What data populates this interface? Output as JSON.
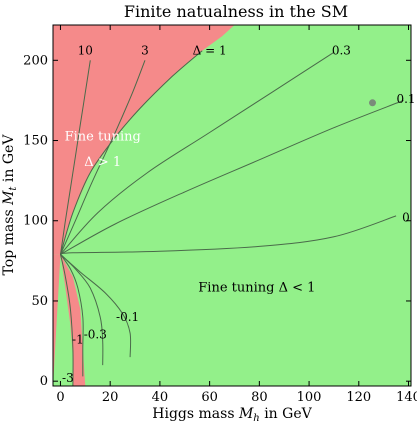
{
  "chart_data": {
    "type": "contour",
    "title": "Finite natualness in the SM",
    "xlabel": "Higgs mass M_h in GeV",
    "ylabel": "Top mass M_t in GeV",
    "xlim": [
      -3,
      141
    ],
    "ylim": [
      -3,
      222
    ],
    "x_ticks": [
      0,
      20,
      40,
      60,
      80,
      100,
      120,
      140
    ],
    "y_ticks": [
      0,
      50,
      100,
      150,
      200
    ],
    "grid": false,
    "colors": {
      "fine_tuned_region": "#f58a8a",
      "natural_region": "#93f08a",
      "contour_line": "#4a6a4a",
      "point": "#7a8a7a"
    },
    "regions": [
      {
        "name": "fine-tuned",
        "label_line1": "Fine tuning",
        "label_line2": "Δ > 1",
        "color": "#f58a8a"
      },
      {
        "name": "natural",
        "label": "Fine tuning Δ < 1",
        "color": "#93f08a"
      }
    ],
    "convergence_point": {
      "x": 0,
      "y": 79
    },
    "data_point": {
      "x": 125.5,
      "y": 173.5
    },
    "boundary_delta_1": [
      [
        0,
        79
      ],
      [
        5,
        105
      ],
      [
        12,
        130
      ],
      [
        22,
        152
      ],
      [
        32,
        170
      ],
      [
        45,
        190
      ],
      [
        57,
        206
      ],
      [
        65,
        215
      ],
      [
        70,
        222
      ]
    ],
    "lower_red_region": [
      [
        0,
        79
      ],
      [
        2,
        58
      ],
      [
        4,
        35
      ],
      [
        5,
        15
      ],
      [
        5,
        -3
      ],
      [
        10,
        -3
      ],
      [
        9,
        20
      ],
      [
        8,
        45
      ],
      [
        5,
        65
      ],
      [
        0,
        79
      ]
    ],
    "contours": [
      {
        "label": "10",
        "points": [
          [
            0,
            79
          ],
          [
            2,
            100
          ],
          [
            5,
            130
          ],
          [
            8,
            160
          ],
          [
            10,
            180
          ],
          [
            12,
            200
          ]
        ],
        "label_at": [
          10,
          206
        ]
      },
      {
        "label": "3",
        "points": [
          [
            0,
            79
          ],
          [
            6,
            100
          ],
          [
            13,
            125
          ],
          [
            22,
            155
          ],
          [
            29,
            180
          ],
          [
            34,
            200
          ]
        ],
        "label_at": [
          34,
          206
        ]
      },
      {
        "label": "Δ = 1",
        "points": [
          [
            0,
            79
          ],
          [
            5,
            105
          ],
          [
            12,
            130
          ],
          [
            22,
            152
          ],
          [
            32,
            170
          ],
          [
            45,
            190
          ],
          [
            57,
            206
          ]
        ],
        "label_at": [
          60,
          206
        ]
      },
      {
        "label": "0.3",
        "points": [
          [
            0,
            79
          ],
          [
            15,
            105
          ],
          [
            35,
            130
          ],
          [
            60,
            155
          ],
          [
            85,
            180
          ],
          [
            110,
            205
          ]
        ],
        "label_at": [
          113,
          206
        ]
      },
      {
        "label": "0.1",
        "points": [
          [
            0,
            79
          ],
          [
            22,
            98
          ],
          [
            50,
            118
          ],
          [
            80,
            138
          ],
          [
            110,
            158
          ],
          [
            138,
            175
          ]
        ],
        "label_at": [
          139,
          176
        ]
      },
      {
        "label": "0",
        "points": [
          [
            0,
            79
          ],
          [
            5,
            80
          ],
          [
            40,
            81
          ],
          [
            80,
            84
          ],
          [
            110,
            90
          ],
          [
            135,
            103
          ]
        ],
        "label_at": [
          139,
          102
        ]
      },
      {
        "label": "-0.1",
        "points": [
          [
            0,
            79
          ],
          [
            8,
            68
          ],
          [
            18,
            55
          ],
          [
            25,
            42
          ],
          [
            28,
            30
          ],
          [
            28,
            15
          ]
        ],
        "label_at": [
          27,
          40
        ]
      },
      {
        "label": "-0.3",
        "points": [
          [
            0,
            79
          ],
          [
            6,
            70
          ],
          [
            12,
            58
          ],
          [
            16,
            40
          ],
          [
            17,
            25
          ],
          [
            17,
            10
          ]
        ],
        "label_at": [
          14,
          29
        ]
      },
      {
        "label": "-1",
        "points": [
          [
            0,
            79
          ],
          [
            4,
            70
          ],
          [
            7,
            58
          ],
          [
            9,
            40
          ],
          [
            9,
            20
          ],
          [
            9,
            3
          ]
        ],
        "label_at": [
          7,
          26
        ]
      },
      {
        "label": "-3",
        "points": [
          [
            0,
            79
          ],
          [
            2,
            65
          ],
          [
            4,
            45
          ],
          [
            5,
            20
          ],
          [
            5,
            -3
          ]
        ],
        "label_at": [
          3,
          2
        ]
      }
    ]
  }
}
